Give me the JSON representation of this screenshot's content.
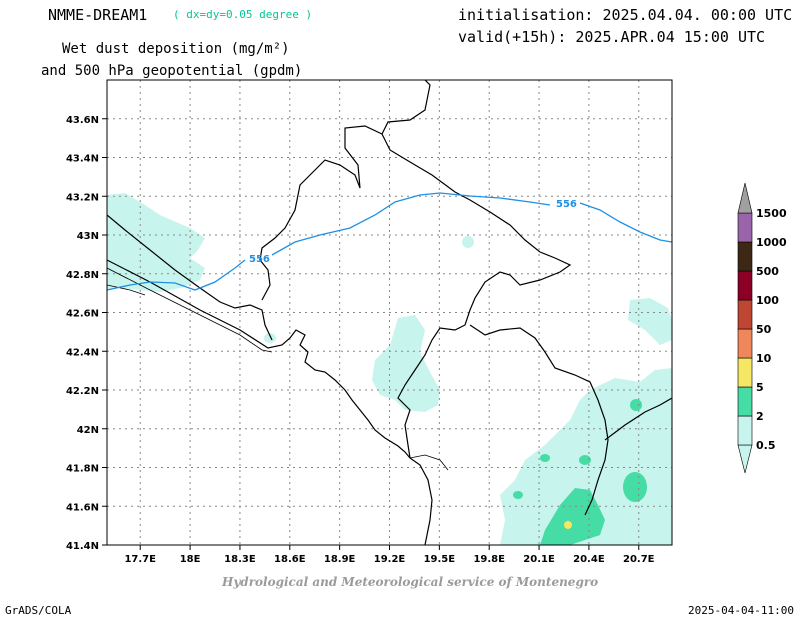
{
  "header": {
    "model": "NMME-DREAM1",
    "resolution": "( dx=dy=0.05 degree )",
    "variable_line1": "Wet dust deposition (mg/m²)",
    "variable_line2": "and 500 hPa geopotential (gpdm)",
    "init": "initialisation: 2025.04.04. 00:00 UTC",
    "valid": "valid(+15h): 2025.APR.04 15:00 UTC"
  },
  "footer": {
    "credit": "Hydrological and Meteorological service of Montenegro",
    "software": "GrADS/COLA",
    "timestamp": "2025-04-04-11:00"
  },
  "map": {
    "lon_range": [
      17.5,
      20.9
    ],
    "lat_range": [
      41.4,
      43.8
    ],
    "lon_ticks": [
      "17.7E",
      "18E",
      "18.3E",
      "18.6E",
      "18.9E",
      "19.2E",
      "19.5E",
      "19.8E",
      "20.1E",
      "20.4E",
      "20.7E"
    ],
    "lat_ticks": [
      "41.4N",
      "41.6N",
      "41.8N",
      "42N",
      "42.2N",
      "42.4N",
      "42.6N",
      "42.8N",
      "43N",
      "43.2N",
      "43.4N",
      "43.6N"
    ],
    "contour_labels": [
      "556",
      "556"
    ],
    "contour_color": "#1e90e6"
  },
  "colorbar": {
    "labels": [
      "0.5",
      "2",
      "5",
      "10",
      "50",
      "100",
      "500",
      "1000",
      "1500"
    ],
    "colors": [
      "#c8f4ee",
      "#46dca5",
      "#f5e664",
      "#f0875a",
      "#be4632",
      "#8c0028",
      "#3c2814",
      "#9a64aa",
      "#a0a0a0"
    ]
  }
}
